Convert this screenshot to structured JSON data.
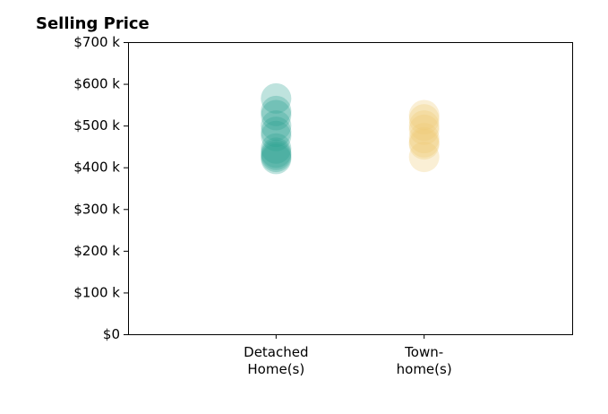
{
  "chart_data": {
    "type": "scatter",
    "title": "Selling Price",
    "xlabel": "",
    "ylabel": "",
    "ylim": [
      0,
      700000
    ],
    "yticks": [
      0,
      100000,
      200000,
      300000,
      400000,
      500000,
      600000,
      700000
    ],
    "ytick_labels": [
      "$0",
      "$100 k",
      "$200 k",
      "$300 k",
      "$400 k",
      "$500 k",
      "$600 k",
      "$700 k"
    ],
    "categories": [
      {
        "label_lines": [
          "Detached",
          "Home(s)"
        ]
      },
      {
        "label_lines": [
          "Town-",
          "home(s)"
        ]
      }
    ],
    "xlim": [
      -1,
      2
    ],
    "grid": false,
    "series": [
      {
        "category_index": 0,
        "color": "#2ca392",
        "alpha": 0.3,
        "values": [
          565000,
          535000,
          525000,
          500000,
          485000,
          475000,
          445000,
          435000,
          430000,
          425000,
          420000
        ]
      },
      {
        "category_index": 1,
        "color": "#f0cb75",
        "alpha": 0.3,
        "values": [
          525000,
          515000,
          500000,
          490000,
          470000,
          460000,
          455000,
          425000
        ]
      }
    ]
  }
}
